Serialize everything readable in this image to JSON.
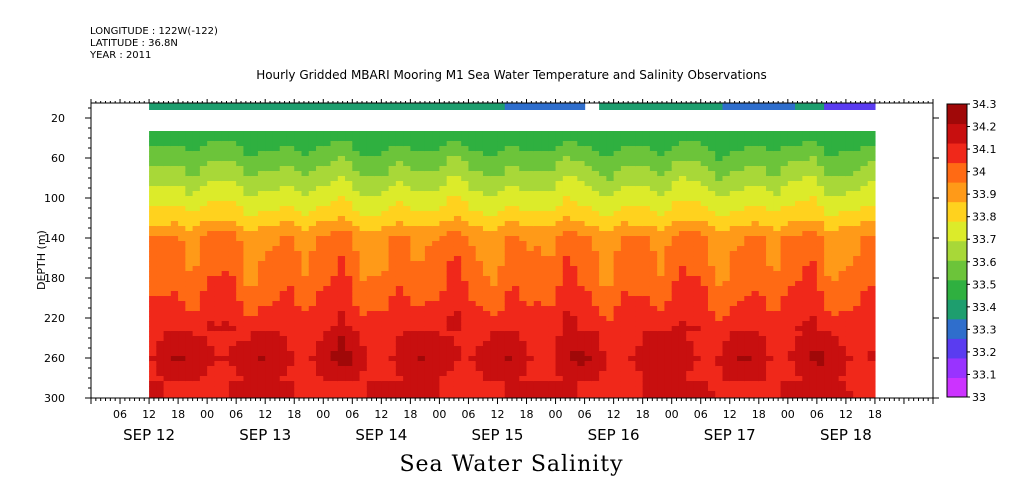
{
  "header": {
    "longitude": "LONGITUDE : 122W(-122)",
    "latitude": "LATITUDE : 36.8N",
    "year": "YEAR : 2011"
  },
  "chart_data": {
    "type": "heatmap",
    "title": "Hourly Gridded MBARI Mooring M1 Sea Water Temperature and Salinity Observations",
    "xlabel": "Sea Water Salinity",
    "ylabel": "DEPTH (m)",
    "x_axis": {
      "range_hours": [
        "SEP 12 00",
        "SEP 19 06"
      ],
      "hour_ticks": [
        "06",
        "12",
        "18",
        "00",
        "06",
        "12",
        "18",
        "00",
        "06",
        "12",
        "18",
        "00",
        "06",
        "12",
        "18",
        "00",
        "06",
        "12",
        "18",
        "00",
        "06",
        "12",
        "18",
        "00",
        "06",
        "12",
        "18"
      ],
      "day_labels": [
        "SEP 12",
        "SEP 13",
        "SEP 14",
        "SEP 15",
        "SEP 16",
        "SEP 17",
        "SEP 18"
      ]
    },
    "y_axis": {
      "range": [
        300,
        5
      ],
      "ticks": [
        20,
        60,
        100,
        140,
        180,
        220,
        260,
        300
      ],
      "inverted": true
    },
    "colorbar": {
      "levels": [
        33.0,
        33.1,
        33.2,
        33.3,
        33.4,
        33.5,
        33.6,
        33.7,
        33.8,
        33.9,
        34.0,
        34.1,
        34.2,
        34.3
      ],
      "labels": [
        "33",
        "33.1",
        "33.2",
        "33.3",
        "33.4",
        "33.5",
        "33.6",
        "33.7",
        "33.8",
        "33.9",
        "34",
        "34.1",
        "34.2",
        "34.3"
      ],
      "colors": [
        "#cc33ff",
        "#9933ff",
        "#5a3cf0",
        "#2f6ecc",
        "#1e9e6e",
        "#2fb040",
        "#6cc43a",
        "#a8d838",
        "#dceb2a",
        "#ffd21e",
        "#ff9a18",
        "#ff6a14",
        "#f0281a",
        "#c80f0f",
        "#a00808"
      ]
    },
    "data_start_day": "SEP 12 12",
    "data_end_day": "SEP 18 18",
    "depth_profile": [
      {
        "depth": 10,
        "salinity": 33.4
      },
      {
        "depth": 40,
        "salinity": 33.45
      },
      {
        "depth": 60,
        "salinity": 33.55
      },
      {
        "depth": 80,
        "salinity": 33.65
      },
      {
        "depth": 100,
        "salinity": 33.75
      },
      {
        "depth": 120,
        "salinity": 33.85
      },
      {
        "depth": 140,
        "salinity": 34.0
      },
      {
        "depth": 180,
        "salinity": 34.05
      },
      {
        "depth": 200,
        "salinity": 34.1
      },
      {
        "depth": 220,
        "salinity": 34.15
      },
      {
        "depth": 240,
        "salinity": 34.2
      },
      {
        "depth": 260,
        "salinity": 34.25
      },
      {
        "depth": 280,
        "salinity": 34.2
      },
      {
        "depth": 300,
        "salinity": 34.2
      }
    ]
  }
}
